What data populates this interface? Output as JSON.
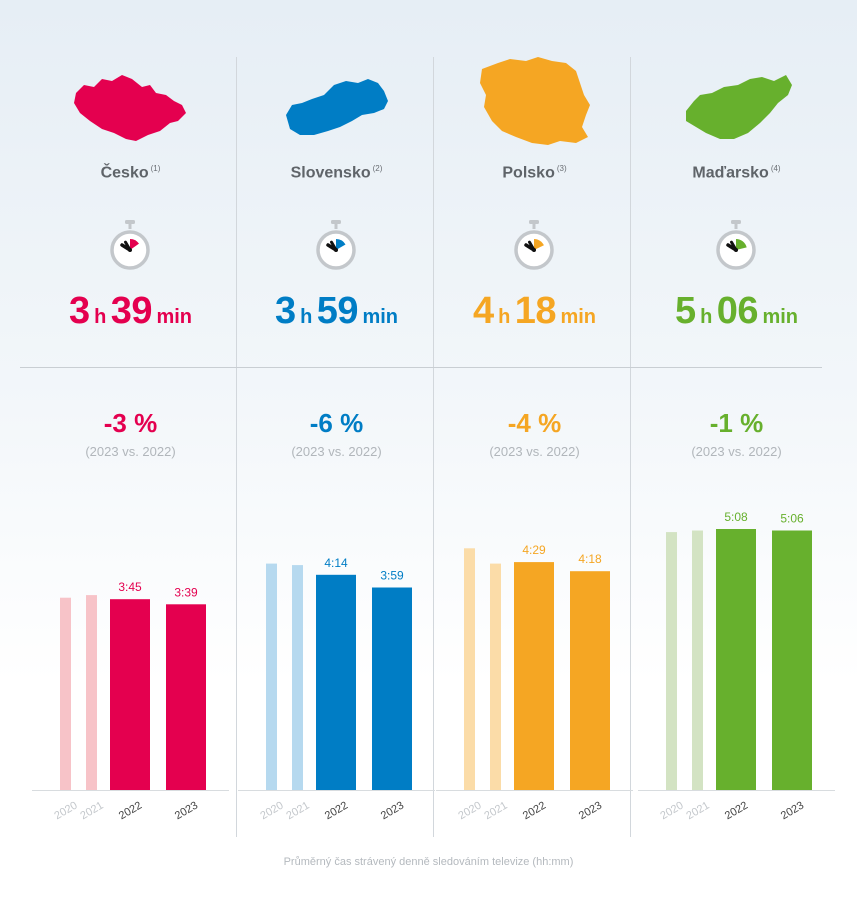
{
  "countries": [
    {
      "name": "Česko",
      "ref": "(1)",
      "map_icon": "czechia-map-icon",
      "hours": "3",
      "h_unit": "h",
      "minutes": "39",
      "min_unit": "min",
      "change": "-3 %",
      "change_note": "(2023 vs. 2022)",
      "color": "#e4004f",
      "light_color": "#f7c3c8",
      "timer_fraction": 0.1525
    },
    {
      "name": "Slovensko",
      "ref": "(2)",
      "map_icon": "slovakia-map-icon",
      "hours": "3",
      "h_unit": "h",
      "minutes": "59",
      "min_unit": "min",
      "change": "-6 %",
      "change_note": "(2023 vs. 2022)",
      "color": "#007dc5",
      "light_color": "#b6d9ef",
      "timer_fraction": 0.166
    },
    {
      "name": "Polsko",
      "ref": "(3)",
      "map_icon": "poland-map-icon",
      "hours": "4",
      "h_unit": "h",
      "minutes": "18",
      "min_unit": "min",
      "change": "-4 %",
      "change_note": "(2023 vs. 2022)",
      "color": "#f5a623",
      "light_color": "#fbdca8",
      "timer_fraction": 0.179
    },
    {
      "name": "Maďarsko",
      "ref": "(4)",
      "map_icon": "hungary-map-icon",
      "hours": "5",
      "h_unit": "h",
      "minutes": "06",
      "min_unit": "min",
      "change": "-1 %",
      "change_note": "(2023 vs. 2022)",
      "color": "#67b02d",
      "light_color": "#d3e3c3",
      "timer_fraction": 0.2125
    }
  ],
  "chart_data": [
    {
      "type": "bar",
      "country": "Česko",
      "categories": [
        "2020",
        "2021",
        "2022",
        "2023"
      ],
      "values": [
        3.78,
        3.83,
        3.75,
        3.65
      ],
      "data_labels": [
        "",
        "",
        "3:45",
        "3:39"
      ],
      "ylim": [
        0,
        5.7
      ]
    },
    {
      "type": "bar",
      "country": "Slovensko",
      "categories": [
        "2020",
        "2021",
        "2022",
        "2023"
      ],
      "values": [
        4.45,
        4.42,
        4.23,
        3.98
      ],
      "data_labels": [
        "",
        "",
        "4:14",
        "3:59"
      ],
      "ylim": [
        0,
        5.7
      ]
    },
    {
      "type": "bar",
      "country": "Polsko",
      "categories": [
        "2020",
        "2021",
        "2022",
        "2023"
      ],
      "values": [
        4.75,
        4.45,
        4.48,
        4.3
      ],
      "data_labels": [
        "",
        "",
        "4:29",
        "4:18"
      ],
      "ylim": [
        0,
        5.7
      ]
    },
    {
      "type": "bar",
      "country": "Maďarsko",
      "categories": [
        "2020",
        "2021",
        "2022",
        "2023"
      ],
      "values": [
        5.07,
        5.1,
        5.13,
        5.1
      ],
      "data_labels": [
        "",
        "",
        "5:08",
        "5:06"
      ],
      "ylim": [
        0,
        5.7
      ]
    }
  ],
  "footnote": "Průměrný čas strávený denně sledováním televize (hh:mm)"
}
